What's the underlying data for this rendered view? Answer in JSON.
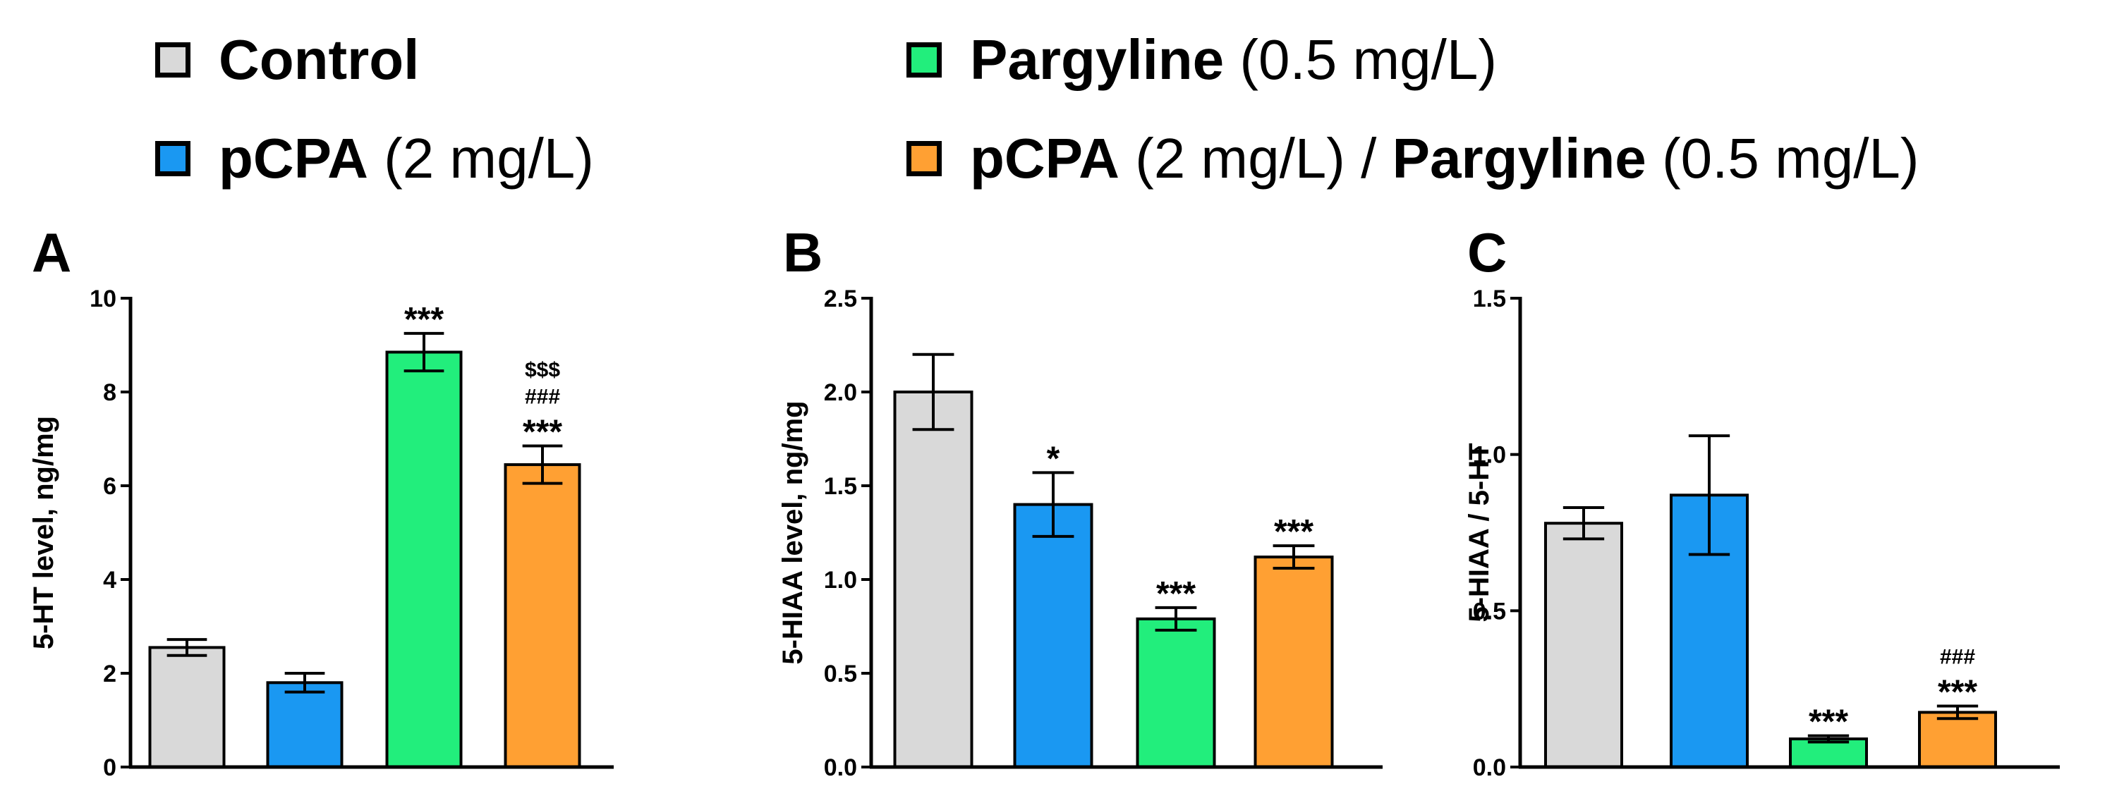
{
  "legend": [
    {
      "bold": "Control",
      "rest": "",
      "color": "#d9d9d9"
    },
    {
      "bold": "Pargyline",
      "rest": " (0.5 mg/L)",
      "color": "#22ee7c"
    },
    {
      "bold": "pCPA",
      "rest": " (2 mg/L)",
      "color": "#1a98f2"
    },
    {
      "bold": "pCPA",
      "rest": " (2 mg/L) / ",
      "bold2": "Pargyline",
      "rest2": " (0.5 mg/L)",
      "color": "#ffa033"
    }
  ],
  "chart_data": [
    {
      "type": "bar",
      "panel": "A",
      "ylabel": "5-HT level, ng/mg",
      "ylim": [
        0,
        10
      ],
      "yticks": [
        "0",
        "2",
        "4",
        "6",
        "8",
        "10"
      ],
      "categories": [
        "Control",
        "pCPA (2 mg/L)",
        "Pargyline (0.5 mg/L)",
        "pCPA (2 mg/L) / Pargyline (0.5 mg/L)"
      ],
      "values": [
        2.55,
        1.8,
        8.85,
        6.45
      ],
      "errors": [
        0.17,
        0.2,
        0.4,
        0.4
      ],
      "colors": [
        "#d9d9d9",
        "#1a98f2",
        "#22ee7c",
        "#ffa033"
      ],
      "annotations": [
        [],
        [],
        [
          "***"
        ],
        [
          "$$$",
          "###",
          "***"
        ]
      ]
    },
    {
      "type": "bar",
      "panel": "B",
      "ylabel": "5-HIAA level, ng/mg",
      "ylim": [
        0,
        2.5
      ],
      "yticks": [
        "0.0",
        "0.5",
        "1.0",
        "1.5",
        "2.0",
        "2.5"
      ],
      "categories": [
        "Control",
        "pCPA (2 mg/L)",
        "Pargyline (0.5 mg/L)",
        "pCPA (2 mg/L) / Pargyline (0.5 mg/L)"
      ],
      "values": [
        2.0,
        1.4,
        0.79,
        1.12
      ],
      "errors": [
        0.2,
        0.17,
        0.06,
        0.06
      ],
      "colors": [
        "#d9d9d9",
        "#1a98f2",
        "#22ee7c",
        "#ffa033"
      ],
      "annotations": [
        [],
        [
          "*"
        ],
        [
          "***"
        ],
        [
          "***"
        ]
      ]
    },
    {
      "type": "bar",
      "panel": "C",
      "ylabel": "5-HIAA / 5-HT",
      "ylim": [
        0,
        1.5
      ],
      "yticks": [
        "0.0",
        "0.5",
        "1.0",
        "1.5"
      ],
      "categories": [
        "Control",
        "pCPA (2 mg/L)",
        "Pargyline (0.5 mg/L)",
        "pCPA (2 mg/L) / Pargyline (0.5 mg/L)"
      ],
      "values": [
        0.78,
        0.87,
        0.09,
        0.175
      ],
      "errors": [
        0.05,
        0.19,
        0.01,
        0.02
      ],
      "colors": [
        "#d9d9d9",
        "#1a98f2",
        "#22ee7c",
        "#ffa033"
      ],
      "annotations": [
        [],
        [],
        [
          "***"
        ],
        [
          "###",
          "***"
        ]
      ]
    }
  ]
}
